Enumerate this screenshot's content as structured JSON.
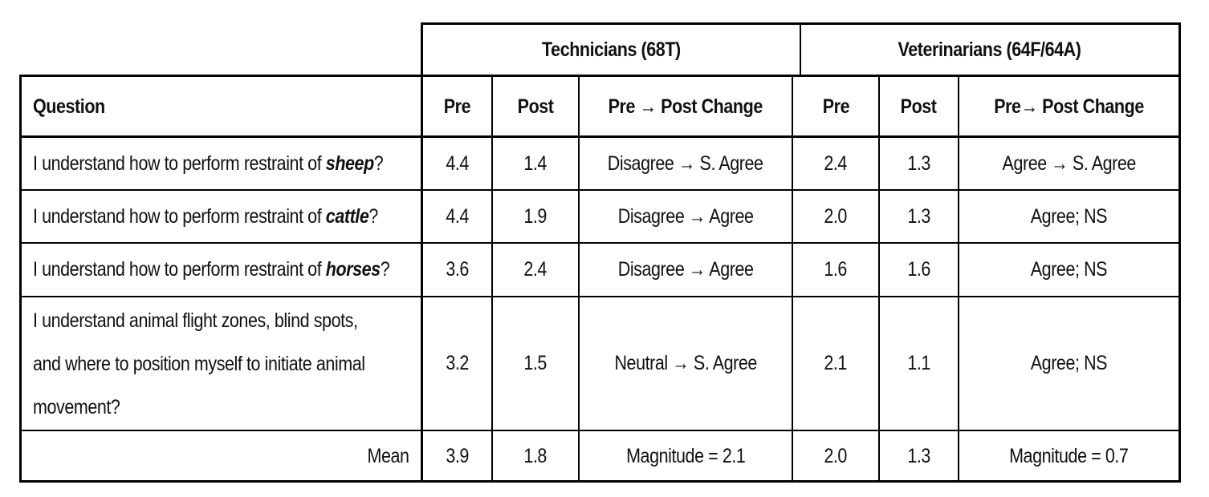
{
  "groups": {
    "technicians": "Technicians (68T)",
    "veterinarians": "Veterinarians (64F/64A)"
  },
  "headers": {
    "question": "Question",
    "tech_pre": "Pre",
    "tech_post": "Post",
    "tech_change": "Pre → Post Change",
    "vet_pre": "Pre",
    "vet_post": "Post",
    "vet_change": "Pre→ Post Change"
  },
  "rows": [
    {
      "q_prefix": "I understand how to perform restraint of ",
      "q_animal": "sheep",
      "q_suffix": "?",
      "tech_pre": "4.4",
      "tech_post": "1.4",
      "tech_change": "Disagree → S. Agree",
      "vet_pre": "2.4",
      "vet_post": "1.3",
      "vet_change": "Agree → S. Agree"
    },
    {
      "q_prefix": "I understand how to perform restraint of ",
      "q_animal": "cattle",
      "q_suffix": "?",
      "tech_pre": "4.4",
      "tech_post": "1.9",
      "tech_change": "Disagree → Agree",
      "vet_pre": "2.0",
      "vet_post": "1.3",
      "vet_change": "Agree; NS"
    },
    {
      "q_prefix": "I understand how to perform restraint of ",
      "q_animal": "horses",
      "q_suffix": "?",
      "tech_pre": "3.6",
      "tech_post": "2.4",
      "tech_change": "Disagree → Agree",
      "vet_pre": "1.6",
      "vet_post": "1.6",
      "vet_change": "Agree; NS"
    },
    {
      "q_lines": [
        "I understand animal flight zones, blind spots,",
        "and where to position myself to initiate animal",
        "movement?"
      ],
      "tech_pre": "3.2",
      "tech_post": "1.5",
      "tech_change": "Neutral → S. Agree",
      "vet_pre": "2.1",
      "vet_post": "1.1",
      "vet_change": "Agree; NS"
    }
  ],
  "mean": {
    "label": "Mean",
    "tech_pre": "3.9",
    "tech_post": "1.8",
    "tech_change": "Magnitude = 2.1",
    "vet_pre": "2.0",
    "vet_post": "1.3",
    "vet_change": "Magnitude = 0.7"
  }
}
